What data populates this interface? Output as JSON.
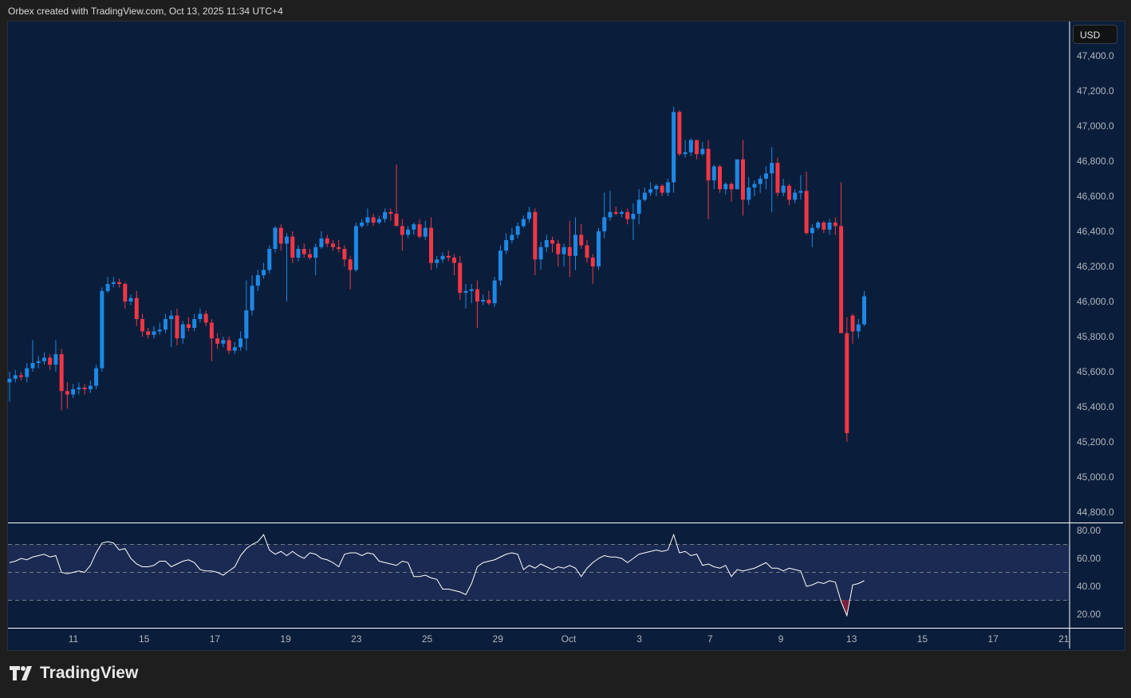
{
  "header": {
    "attribution": "Orbex created with TradingView.com, Oct 13, 2025 11:34 UTC+4"
  },
  "currency_button": "USD",
  "logo": {
    "text": "TradingView",
    "icon": "tradingview-logo-icon"
  },
  "colors": {
    "background": "#0a1e3b",
    "up": "#1e88e5",
    "down": "#f23645",
    "rsi_line": "#ffffff",
    "rsi_band": "#1a2a52",
    "oversold_fill": "#7a1f3d"
  },
  "chart_data": [
    {
      "type": "candlestick",
      "ylabel": "",
      "xlabel": "",
      "ylim": [
        44750,
        47550
      ],
      "y_ticks": [
        "47,400.0",
        "47,200.0",
        "47,000.0",
        "46,800.0",
        "46,600.0",
        "46,400.0",
        "46,200.0",
        "46,000.0",
        "45,800.0",
        "45,600.0",
        "45,400.0",
        "45,200.0",
        "45,000.0",
        "44,800.0"
      ],
      "y_tick_values": [
        47400,
        47200,
        47000,
        46800,
        46600,
        46400,
        46200,
        46000,
        45800,
        45600,
        45400,
        45200,
        45000,
        44800
      ],
      "x_ticks": [
        "11",
        "15",
        "17",
        "19",
        "23",
        "25",
        "29",
        "Oct",
        "3",
        "7",
        "9",
        "13",
        "15",
        "17",
        "21"
      ],
      "grid": false,
      "candles_ohlc": [
        [
          45540,
          45600,
          45430,
          45560
        ],
        [
          45560,
          45610,
          45540,
          45580
        ],
        [
          45580,
          45600,
          45550,
          45570
        ],
        [
          45570,
          45650,
          45540,
          45620
        ],
        [
          45620,
          45780,
          45600,
          45650
        ],
        [
          45650,
          45690,
          45620,
          45660
        ],
        [
          45660,
          45710,
          45640,
          45680
        ],
        [
          45680,
          45700,
          45610,
          45640
        ],
        [
          45640,
          45780,
          45600,
          45700
        ],
        [
          45700,
          45730,
          45380,
          45490
        ],
        [
          45490,
          45540,
          45390,
          45470
        ],
        [
          45470,
          45530,
          45450,
          45500
        ],
        [
          45500,
          45540,
          45470,
          45510
        ],
        [
          45510,
          45530,
          45470,
          45500
        ],
        [
          45500,
          45550,
          45480,
          45520
        ],
        [
          45520,
          45640,
          45500,
          45620
        ],
        [
          45620,
          46080,
          45600,
          46060
        ],
        [
          46060,
          46140,
          46050,
          46100
        ],
        [
          46100,
          46140,
          46080,
          46110
        ],
        [
          46110,
          46130,
          46080,
          46100
        ],
        [
          46100,
          46110,
          45960,
          46000
        ],
        [
          46000,
          46040,
          45980,
          46020
        ],
        [
          46020,
          46060,
          45860,
          45900
        ],
        [
          45900,
          45930,
          45800,
          45830
        ],
        [
          45830,
          45850,
          45790,
          45810
        ],
        [
          45810,
          45860,
          45790,
          45830
        ],
        [
          45830,
          45880,
          45810,
          45840
        ],
        [
          45840,
          45930,
          45820,
          45900
        ],
        [
          45900,
          45950,
          45740,
          45920
        ],
        [
          45920,
          45960,
          45750,
          45790
        ],
        [
          45790,
          45890,
          45760,
          45870
        ],
        [
          45870,
          45910,
          45830,
          45850
        ],
        [
          45850,
          45930,
          45830,
          45900
        ],
        [
          45900,
          45960,
          45880,
          45930
        ],
        [
          45930,
          45950,
          45860,
          45880
        ],
        [
          45880,
          45900,
          45660,
          45790
        ],
        [
          45790,
          45820,
          45730,
          45760
        ],
        [
          45760,
          45800,
          45740,
          45780
        ],
        [
          45780,
          45800,
          45700,
          45720
        ],
        [
          45720,
          45770,
          45700,
          45740
        ],
        [
          45740,
          45830,
          45720,
          45790
        ],
        [
          45790,
          46120,
          45720,
          45950
        ],
        [
          45950,
          46150,
          45920,
          46090
        ],
        [
          46090,
          46180,
          46060,
          46150
        ],
        [
          46150,
          46220,
          46130,
          46180
        ],
        [
          46180,
          46320,
          46160,
          46300
        ],
        [
          46300,
          46430,
          46280,
          46420
        ],
        [
          46420,
          46440,
          46290,
          46330
        ],
        [
          46330,
          46390,
          46000,
          46370
        ],
        [
          46370,
          46400,
          46220,
          46250
        ],
        [
          46250,
          46320,
          46230,
          46300
        ],
        [
          46300,
          46330,
          46250,
          46270
        ],
        [
          46270,
          46300,
          46240,
          46250
        ],
        [
          46250,
          46330,
          46150,
          46310
        ],
        [
          46310,
          46400,
          46300,
          46360
        ],
        [
          46360,
          46380,
          46310,
          46330
        ],
        [
          46330,
          46350,
          46290,
          46310
        ],
        [
          46310,
          46350,
          46280,
          46300
        ],
        [
          46300,
          46320,
          46200,
          46240
        ],
        [
          46240,
          46260,
          46070,
          46180
        ],
        [
          46180,
          46450,
          46170,
          46430
        ],
        [
          46430,
          46470,
          46420,
          46450
        ],
        [
          46450,
          46530,
          46430,
          46480
        ],
        [
          46480,
          46500,
          46430,
          46450
        ],
        [
          46450,
          46490,
          46440,
          46470
        ],
        [
          46470,
          46530,
          46450,
          46510
        ],
        [
          46510,
          46530,
          46460,
          46500
        ],
        [
          46500,
          46780,
          46480,
          46430
        ],
        [
          46430,
          46470,
          46290,
          46380
        ],
        [
          46380,
          46430,
          46360,
          46410
        ],
        [
          46410,
          46450,
          46380,
          46440
        ],
        [
          46440,
          46470,
          46360,
          46370
        ],
        [
          46370,
          46460,
          46350,
          46420
        ],
        [
          46420,
          46480,
          46180,
          46220
        ],
        [
          46220,
          46260,
          46190,
          46240
        ],
        [
          46240,
          46280,
          46220,
          46260
        ],
        [
          46260,
          46290,
          46230,
          46250
        ],
        [
          46250,
          46270,
          46150,
          46220
        ],
        [
          46220,
          46260,
          46010,
          46050
        ],
        [
          46050,
          46100,
          45960,
          46060
        ],
        [
          46060,
          46100,
          45990,
          46070
        ],
        [
          46070,
          46120,
          45850,
          46000
        ],
        [
          46000,
          46040,
          45980,
          46010
        ],
        [
          46010,
          46060,
          45980,
          45990
        ],
        [
          45990,
          46140,
          45970,
          46120
        ],
        [
          46120,
          46320,
          46090,
          46290
        ],
        [
          46290,
          46390,
          46270,
          46350
        ],
        [
          46350,
          46420,
          46330,
          46380
        ],
        [
          46380,
          46450,
          46360,
          46430
        ],
        [
          46430,
          46490,
          46420,
          46470
        ],
        [
          46470,
          46540,
          46450,
          46510
        ],
        [
          46510,
          46530,
          46150,
          46240
        ],
        [
          46240,
          46340,
          46180,
          46310
        ],
        [
          46310,
          46380,
          46280,
          46350
        ],
        [
          46350,
          46370,
          46280,
          46330
        ],
        [
          46330,
          46350,
          46200,
          46270
        ],
        [
          46270,
          46330,
          46200,
          46310
        ],
        [
          46310,
          46460,
          46140,
          46260
        ],
        [
          46260,
          46480,
          46180,
          46380
        ],
        [
          46380,
          46440,
          46300,
          46320
        ],
        [
          46320,
          46350,
          46220,
          46250
        ],
        [
          46250,
          46270,
          46100,
          46200
        ],
        [
          46200,
          46420,
          46180,
          46400
        ],
        [
          46400,
          46620,
          46360,
          46480
        ],
        [
          46480,
          46630,
          46460,
          46510
        ],
        [
          46510,
          46540,
          46490,
          46500
        ],
        [
          46500,
          46520,
          46480,
          46510
        ],
        [
          46510,
          46530,
          46440,
          46470
        ],
        [
          46470,
          46560,
          46350,
          46500
        ],
        [
          46500,
          46640,
          46440,
          46580
        ],
        [
          46580,
          46650,
          46570,
          46620
        ],
        [
          46620,
          46680,
          46600,
          46640
        ],
        [
          46640,
          46670,
          46600,
          46660
        ],
        [
          46660,
          46670,
          46600,
          46620
        ],
        [
          46620,
          46700,
          46600,
          46680
        ],
        [
          46680,
          47110,
          46620,
          47080
        ],
        [
          47080,
          47090,
          46830,
          46840
        ],
        [
          46840,
          46920,
          46820,
          46850
        ],
        [
          46850,
          46930,
          46830,
          46920
        ],
        [
          46920,
          46920,
          46810,
          46840
        ],
        [
          46840,
          46910,
          46830,
          46870
        ],
        [
          46870,
          46920,
          46470,
          46690
        ],
        [
          46690,
          46780,
          46640,
          46770
        ],
        [
          46770,
          46780,
          46620,
          46640
        ],
        [
          46640,
          46680,
          46610,
          46670
        ],
        [
          46670,
          46680,
          46570,
          46640
        ],
        [
          46640,
          46810,
          46640,
          46810
        ],
        [
          46810,
          46920,
          46490,
          46580
        ],
        [
          46580,
          46710,
          46550,
          46650
        ],
        [
          46650,
          46690,
          46600,
          46670
        ],
        [
          46670,
          46720,
          46620,
          46700
        ],
        [
          46700,
          46770,
          46640,
          46730
        ],
        [
          46730,
          46880,
          46510,
          46790
        ],
        [
          46790,
          46820,
          46600,
          46620
        ],
        [
          46620,
          46700,
          46600,
          46660
        ],
        [
          46660,
          46670,
          46550,
          46580
        ],
        [
          46580,
          46640,
          46560,
          46620
        ],
        [
          46620,
          46720,
          46580,
          46630
        ],
        [
          46630,
          46740,
          46380,
          46390
        ],
        [
          46390,
          46440,
          46310,
          46420
        ],
        [
          46420,
          46460,
          46410,
          46450
        ],
        [
          46450,
          46460,
          46390,
          46410
        ],
        [
          46410,
          46470,
          46380,
          46450
        ],
        [
          46450,
          46480,
          46380,
          46430
        ],
        [
          46430,
          46680,
          46370,
          45820
        ],
        [
          45820,
          45910,
          45200,
          45250
        ],
        [
          45920,
          45930,
          45760,
          45830
        ],
        [
          45830,
          45900,
          45790,
          45870
        ],
        [
          45870,
          46060,
          45860,
          46030
        ]
      ]
    },
    {
      "type": "line",
      "ylim": [
        13,
        83
      ],
      "y_ticks": [
        "80.00",
        "60.00",
        "40.00",
        "20.00"
      ],
      "y_tick_values": [
        80,
        60,
        40,
        20
      ],
      "levels": [
        70,
        50,
        30
      ],
      "band": [
        30,
        70
      ],
      "values": [
        57,
        58,
        60,
        59,
        61,
        62,
        63,
        61,
        62,
        50,
        49,
        50,
        51,
        50,
        55,
        64,
        71,
        72,
        71,
        66,
        67,
        60,
        56,
        54,
        54,
        55,
        58,
        58,
        54,
        56,
        58,
        59,
        57,
        52,
        51,
        51,
        50,
        48,
        51,
        54,
        62,
        67,
        70,
        72,
        77,
        66,
        63,
        65,
        62,
        65,
        62,
        60,
        64,
        63,
        60,
        59,
        57,
        54,
        63,
        64,
        64,
        62,
        64,
        63,
        58,
        57,
        56,
        55,
        58,
        57,
        47,
        47,
        48,
        46,
        45,
        38,
        38,
        37,
        36,
        34,
        42,
        54,
        57,
        58,
        59,
        61,
        63,
        64,
        63,
        52,
        55,
        53,
        56,
        54,
        52,
        54,
        53,
        55,
        53,
        47,
        53,
        57,
        60,
        62,
        61,
        61,
        60,
        57,
        60,
        63,
        64,
        65,
        66,
        65,
        66,
        77,
        64,
        65,
        62,
        63,
        55,
        56,
        54,
        53,
        55,
        47,
        52,
        51,
        52,
        53,
        55,
        57,
        53,
        53,
        51,
        53,
        52,
        51,
        40,
        41,
        43,
        42,
        44,
        43,
        29,
        19,
        41,
        42,
        44
      ]
    }
  ]
}
